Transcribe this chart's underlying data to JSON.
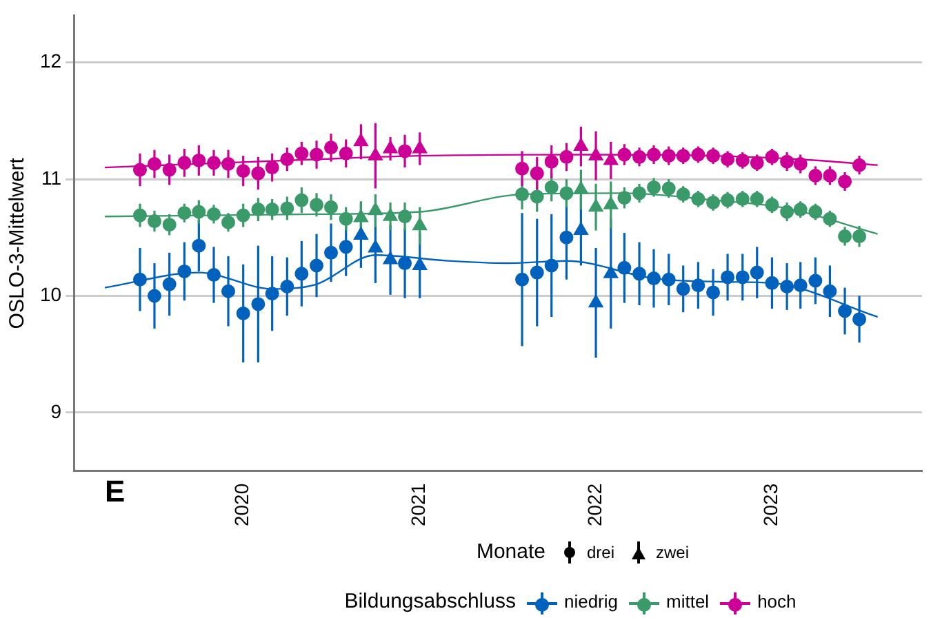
{
  "chart_data": {
    "type": "scatter",
    "ylabel": "OSLO-3-Mittelwert",
    "legend_title": "Bildungsabschluss",
    "annotations": [
      "E",
      "Monate",
      "drei",
      "zwei"
    ],
    "xlim": [
      "2019-01-15",
      "2023-11-08"
    ],
    "xticks": [
      "2020",
      "2021",
      "2022",
      "2023"
    ],
    "ylim": [
      8.5,
      12.4
    ],
    "yticks": [
      9,
      10,
      11,
      12
    ],
    "grid": "y",
    "legend": "bottom",
    "series": [
      {
        "name": "niedrig",
        "color": "#0062bd",
        "marker": "circle",
        "x": [
          "2019-06",
          "2019-07",
          "2019-08",
          "2019-09",
          "2019-10",
          "2019-11",
          "2019-12",
          "2020-01",
          "2020-02",
          "2020-03",
          "2020-04",
          "2020-05",
          "2020-06",
          "2020-07",
          "2020-08",
          "2020-12",
          "2021-08",
          "2021-09",
          "2021-10",
          "2021-11",
          "2022-03",
          "2022-04",
          "2022-05",
          "2022-06",
          "2022-07",
          "2022-08",
          "2022-09",
          "2022-10",
          "2022-11",
          "2022-12",
          "2023-01",
          "2023-02",
          "2023-03",
          "2023-04",
          "2023-05",
          "2023-06",
          "2023-07"
        ],
        "values": [
          10.14,
          10.0,
          10.1,
          10.21,
          10.43,
          10.18,
          10.04,
          9.85,
          9.93,
          10.02,
          10.08,
          10.19,
          10.26,
          10.37,
          10.42,
          10.28,
          10.14,
          10.2,
          10.26,
          10.5,
          10.24,
          10.19,
          10.15,
          10.14,
          10.06,
          10.09,
          10.03,
          10.16,
          10.16,
          10.2,
          10.11,
          10.08,
          10.09,
          10.13,
          10.04,
          9.87,
          9.8
        ],
        "errors": [
          0.27,
          0.28,
          0.27,
          0.25,
          0.22,
          0.24,
          0.3,
          0.42,
          0.5,
          0.32,
          0.25,
          0.28,
          0.27,
          0.25,
          0.25,
          0.3,
          0.57,
          0.46,
          0.44,
          0.36,
          0.3,
          0.27,
          0.25,
          0.22,
          0.2,
          0.2,
          0.2,
          0.2,
          0.2,
          0.22,
          0.22,
          0.2,
          0.2,
          0.2,
          0.22,
          0.2,
          0.2
        ]
      },
      {
        "name": "mittel",
        "color": "#3a9a6a",
        "marker": "circle",
        "x": [
          "2019-06",
          "2019-07",
          "2019-08",
          "2019-09",
          "2019-10",
          "2019-11",
          "2019-12",
          "2020-01",
          "2020-02",
          "2020-03",
          "2020-04",
          "2020-05",
          "2020-06",
          "2020-07",
          "2020-08",
          "2020-12",
          "2021-08",
          "2021-09",
          "2021-10",
          "2021-11",
          "2022-03",
          "2022-04",
          "2022-05",
          "2022-06",
          "2022-07",
          "2022-08",
          "2022-09",
          "2022-10",
          "2022-11",
          "2022-12",
          "2023-01",
          "2023-02",
          "2023-03",
          "2023-04",
          "2023-05",
          "2023-06",
          "2023-07"
        ],
        "values": [
          10.69,
          10.64,
          10.61,
          10.71,
          10.72,
          10.7,
          10.63,
          10.69,
          10.74,
          10.74,
          10.75,
          10.82,
          10.78,
          10.76,
          10.66,
          10.68,
          10.87,
          10.85,
          10.93,
          10.88,
          10.84,
          10.88,
          10.93,
          10.92,
          10.87,
          10.83,
          10.8,
          10.82,
          10.83,
          10.83,
          10.78,
          10.72,
          10.74,
          10.72,
          10.66,
          10.51,
          10.51
        ],
        "errors": [
          0.1,
          0.09,
          0.09,
          0.08,
          0.1,
          0.08,
          0.08,
          0.1,
          0.1,
          0.09,
          0.1,
          0.11,
          0.1,
          0.11,
          0.1,
          0.12,
          0.13,
          0.13,
          0.12,
          0.12,
          0.09,
          0.08,
          0.08,
          0.08,
          0.07,
          0.07,
          0.07,
          0.07,
          0.07,
          0.07,
          0.07,
          0.08,
          0.07,
          0.07,
          0.07,
          0.08,
          0.09
        ]
      },
      {
        "name": "hoch",
        "color": "#cc0096",
        "marker": "circle",
        "x": [
          "2019-06",
          "2019-07",
          "2019-08",
          "2019-09",
          "2019-10",
          "2019-11",
          "2019-12",
          "2020-01",
          "2020-02",
          "2020-03",
          "2020-04",
          "2020-05",
          "2020-06",
          "2020-07",
          "2020-08",
          "2020-12",
          "2021-08",
          "2021-09",
          "2021-10",
          "2021-11",
          "2022-03",
          "2022-04",
          "2022-05",
          "2022-06",
          "2022-07",
          "2022-08",
          "2022-09",
          "2022-10",
          "2022-11",
          "2022-12",
          "2023-01",
          "2023-02",
          "2023-03",
          "2023-04",
          "2023-05",
          "2023-06",
          "2023-07"
        ],
        "values": [
          11.08,
          11.13,
          11.08,
          11.14,
          11.16,
          11.14,
          11.13,
          11.07,
          11.05,
          11.1,
          11.17,
          11.22,
          11.21,
          11.27,
          11.22,
          11.24,
          11.09,
          11.05,
          11.15,
          11.19,
          11.21,
          11.19,
          11.21,
          11.2,
          11.2,
          11.21,
          11.2,
          11.17,
          11.16,
          11.14,
          11.19,
          11.15,
          11.13,
          11.03,
          11.03,
          10.98,
          11.12
        ],
        "errors": [
          0.14,
          0.12,
          0.13,
          0.12,
          0.13,
          0.11,
          0.12,
          0.13,
          0.14,
          0.12,
          0.1,
          0.1,
          0.12,
          0.12,
          0.12,
          0.14,
          0.15,
          0.14,
          0.14,
          0.12,
          0.09,
          0.08,
          0.08,
          0.08,
          0.07,
          0.07,
          0.07,
          0.07,
          0.07,
          0.07,
          0.07,
          0.08,
          0.08,
          0.08,
          0.08,
          0.08,
          0.08
        ]
      },
      {
        "color": "#0062bd",
        "marker": "triangle",
        "x": [
          "2020-09",
          "2020-10",
          "2020-11",
          "2021-01",
          "2021-12",
          "2022-01",
          "2022-02"
        ],
        "values": [
          10.52,
          10.41,
          10.31,
          10.26,
          10.56,
          9.94,
          10.19
        ],
        "errors": [
          0.28,
          0.3,
          0.3,
          0.28,
          0.3,
          0.47,
          0.47
        ]
      },
      {
        "color": "#3a9a6a",
        "marker": "triangle",
        "x": [
          "2020-09",
          "2020-10",
          "2020-11",
          "2021-01",
          "2021-12",
          "2022-01",
          "2022-02"
        ],
        "values": [
          10.67,
          10.73,
          10.68,
          10.6,
          10.91,
          10.76,
          10.78
        ],
        "errors": [
          0.14,
          0.14,
          0.12,
          0.16,
          0.17,
          0.2,
          0.2
        ]
      },
      {
        "color": "#cc0096",
        "marker": "triangle",
        "x": [
          "2020-09",
          "2020-10",
          "2020-11",
          "2021-01",
          "2021-12",
          "2022-01",
          "2022-02"
        ],
        "values": [
          11.32,
          11.2,
          11.26,
          11.26,
          11.28,
          11.2,
          11.16
        ],
        "errors": [
          0.15,
          0.28,
          0.1,
          0.14,
          0.17,
          0.21,
          0.16
        ]
      },
      {
        "type": "line",
        "color": "#0062bd",
        "marker": "none",
        "x": [
          "2019-03-20",
          "2019-10",
          "2020-03",
          "2020-06",
          "2020-10",
          "2021-03",
          "2021-07",
          "2021-11",
          "2022-05",
          "2022-10",
          "2023-01",
          "2023-08-08"
        ],
        "values": [
          10.07,
          10.2,
          10.06,
          10.1,
          10.35,
          10.3,
          10.28,
          10.3,
          10.15,
          10.12,
          10.11,
          9.82
        ]
      },
      {
        "type": "line",
        "color": "#3a9a6a",
        "marker": "none",
        "x": [
          "2019-03-20",
          "2020-06",
          "2021-01",
          "2021-08",
          "2022-03",
          "2022-09",
          "2023-02",
          "2023-08-08"
        ],
        "values": [
          10.68,
          10.7,
          10.72,
          10.87,
          10.88,
          10.82,
          10.75,
          10.53
        ]
      },
      {
        "type": "line",
        "color": "#cc0096",
        "marker": "none",
        "x": [
          "2019-03-20",
          "2020-06",
          "2021-01",
          "2022-01",
          "2022-09",
          "2023-03",
          "2023-08-08"
        ],
        "values": [
          11.1,
          11.17,
          11.2,
          11.21,
          11.2,
          11.17,
          11.12
        ]
      }
    ]
  }
}
